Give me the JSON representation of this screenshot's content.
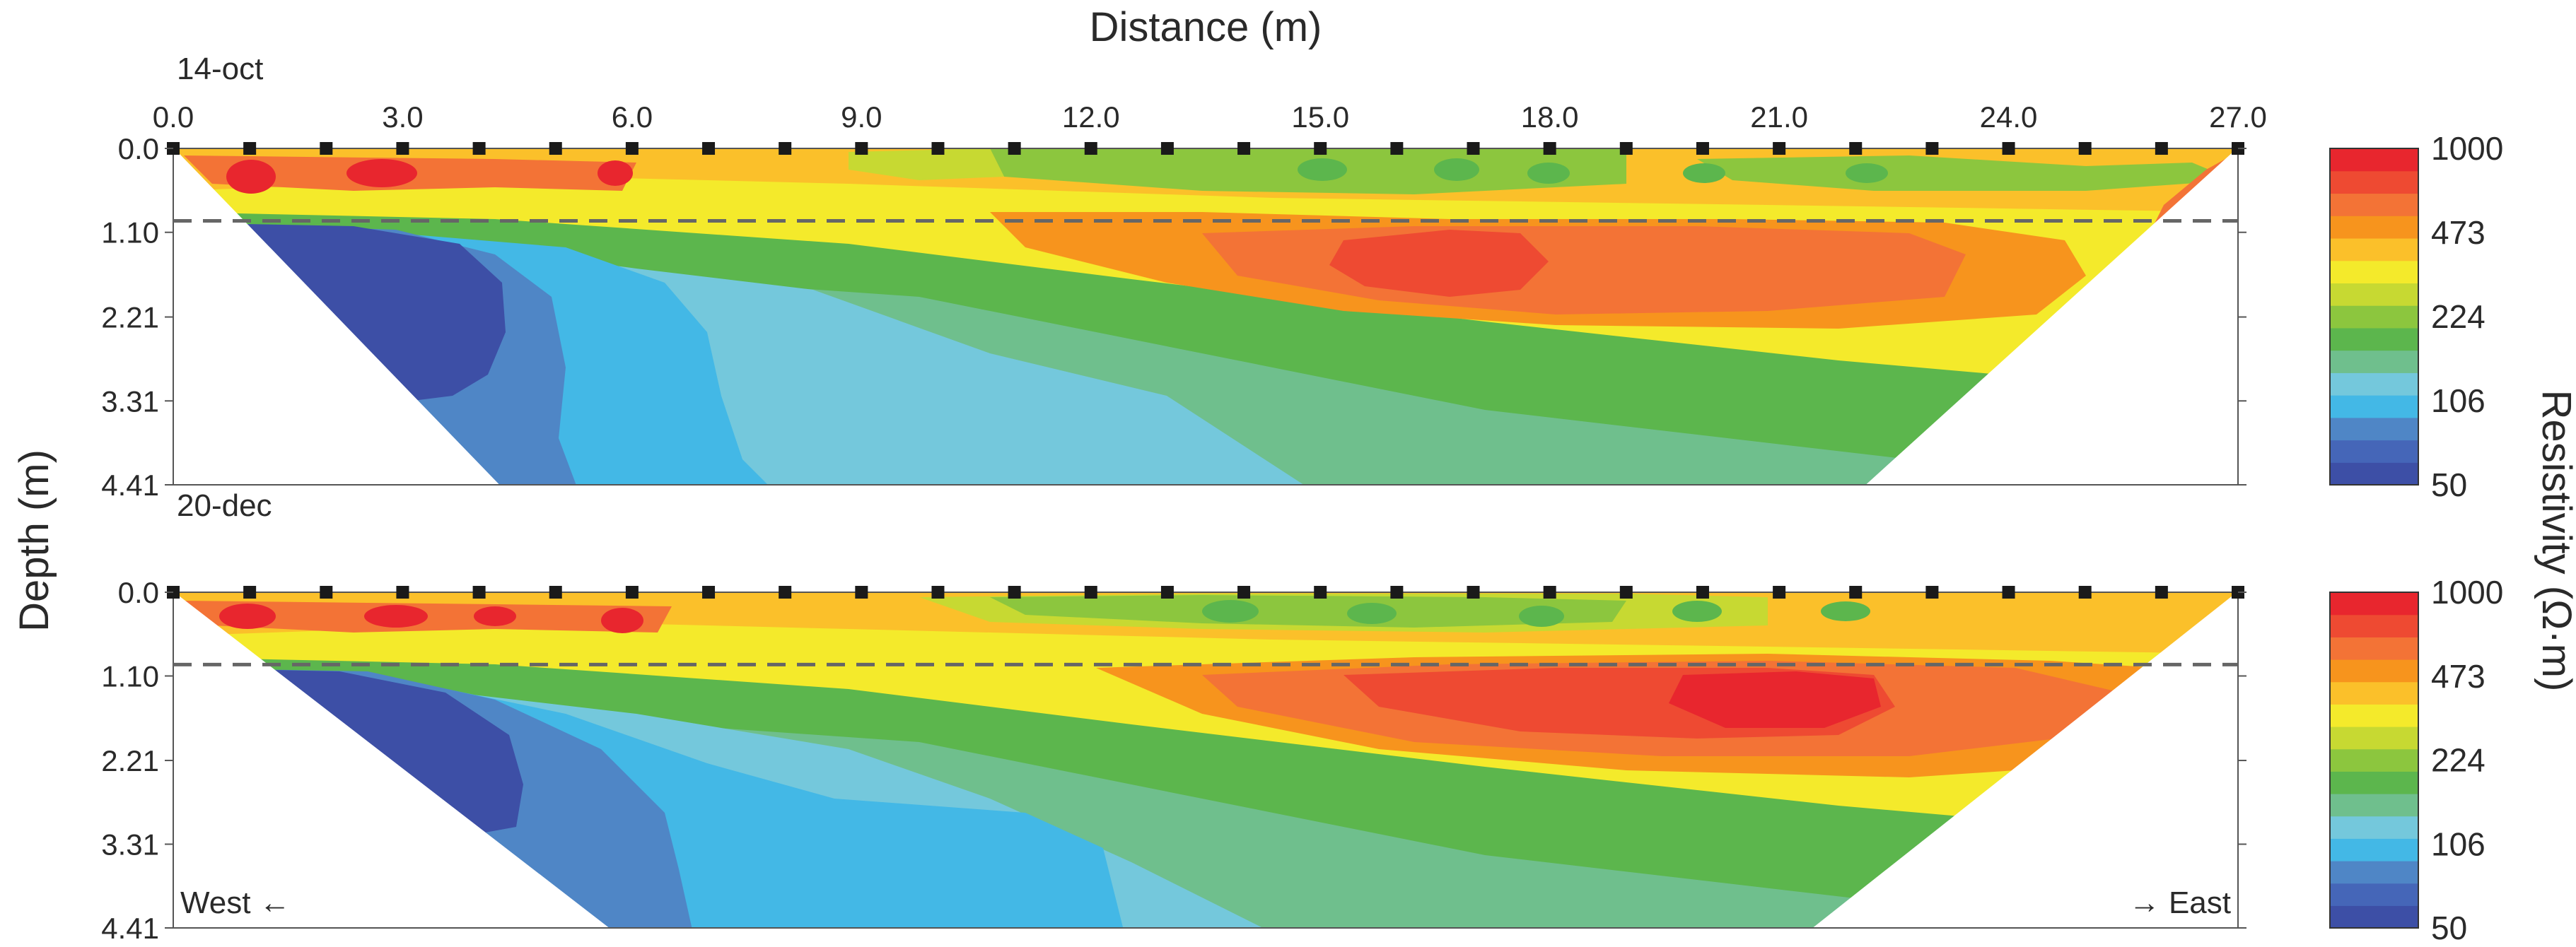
{
  "chart_data": {
    "type": "heatmap",
    "title": "",
    "xlabel": "Distance (m)",
    "ylabel": "Depth (m)",
    "colorbar_label": "Resistivity (Ω·m)",
    "xlim": [
      0,
      27
    ],
    "ylim": [
      0,
      4.41
    ],
    "x_ticks": [
      "0.0",
      "3.0",
      "6.0",
      "9.0",
      "12.0",
      "15.0",
      "18.0",
      "21.0",
      "24.0",
      "27.0"
    ],
    "y_ticks": [
      "0.0",
      "1.10",
      "2.21",
      "3.31",
      "4.41"
    ],
    "colorbar_ticks": [
      "1000",
      "473",
      "224",
      "106",
      "50"
    ],
    "colorbar_range": [
      50,
      1000
    ],
    "colors": [
      "#3d4fa6",
      "#4566b8",
      "#4f86c6",
      "#43b8e6",
      "#74c8dc",
      "#6fbf8d",
      "#5cb64d",
      "#8cc63e",
      "#c7d932",
      "#f4ea2b",
      "#fbc02a",
      "#f7941d",
      "#f37336",
      "#ee4a32",
      "#e8262e"
    ],
    "electrode_spacing": 1.0,
    "dashed_line_depth": 0.95,
    "direction_labels": {
      "west": "West ←",
      "east": "→ East"
    },
    "panels": [
      {
        "label": "14-oct"
      },
      {
        "label": "20-dec"
      }
    ]
  }
}
